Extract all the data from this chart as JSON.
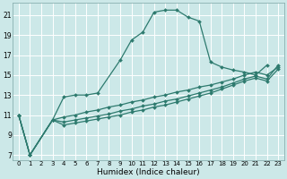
{
  "xlabel": "Humidex (Indice chaleur)",
  "background_color": "#cce8e8",
  "grid_color": "#ffffff",
  "line_color": "#2d7a6e",
  "xlim": [
    -0.5,
    23.5
  ],
  "ylim": [
    6.5,
    22.2
  ],
  "xticks": [
    0,
    1,
    2,
    3,
    4,
    5,
    6,
    7,
    8,
    9,
    10,
    11,
    12,
    13,
    14,
    15,
    16,
    17,
    18,
    19,
    20,
    21,
    22,
    23
  ],
  "yticks": [
    7,
    9,
    11,
    13,
    15,
    17,
    19,
    21
  ],
  "series": [
    {
      "x": [
        0,
        1,
        3,
        4,
        5,
        6,
        7,
        9,
        10,
        11,
        12,
        13,
        14,
        15,
        16,
        17,
        18,
        19,
        20,
        21,
        22
      ],
      "y": [
        11,
        7,
        10.5,
        12.8,
        13.0,
        13.0,
        13.2,
        16.5,
        18.5,
        19.3,
        21.3,
        21.5,
        21.5,
        20.8,
        20.4,
        16.3,
        15.8,
        15.5,
        15.3,
        15.0,
        16.0
      ]
    },
    {
      "x": [
        0,
        1,
        3,
        4,
        5,
        6,
        7,
        8,
        9,
        10,
        11,
        12,
        13,
        14,
        15,
        16,
        17,
        18,
        19,
        20,
        21,
        22,
        23
      ],
      "y": [
        11,
        7,
        10.5,
        10.8,
        11.0,
        11.3,
        11.5,
        11.8,
        12.0,
        12.3,
        12.5,
        12.8,
        13.0,
        13.3,
        13.5,
        13.8,
        14.0,
        14.3,
        14.6,
        15.0,
        15.3,
        15.0,
        15.8
      ]
    },
    {
      "x": [
        0,
        1,
        3,
        4,
        5,
        6,
        7,
        8,
        9,
        10,
        11,
        12,
        13,
        14,
        15,
        16,
        17,
        18,
        19,
        20,
        21,
        22,
        23
      ],
      "y": [
        11,
        7,
        10.5,
        10.3,
        10.5,
        10.7,
        10.9,
        11.1,
        11.4,
        11.6,
        11.9,
        12.1,
        12.4,
        12.6,
        12.9,
        13.2,
        13.5,
        13.8,
        14.2,
        14.6,
        14.9,
        14.6,
        16.0
      ]
    },
    {
      "x": [
        0,
        1,
        3,
        4,
        5,
        6,
        7,
        8,
        9,
        10,
        11,
        12,
        13,
        14,
        15,
        16,
        17,
        18,
        19,
        20,
        21,
        22,
        23
      ],
      "y": [
        11,
        7,
        10.5,
        10.0,
        10.2,
        10.4,
        10.6,
        10.8,
        11.0,
        11.3,
        11.5,
        11.8,
        12.0,
        12.3,
        12.6,
        12.9,
        13.2,
        13.6,
        14.0,
        14.4,
        14.7,
        14.4,
        15.6
      ]
    }
  ]
}
